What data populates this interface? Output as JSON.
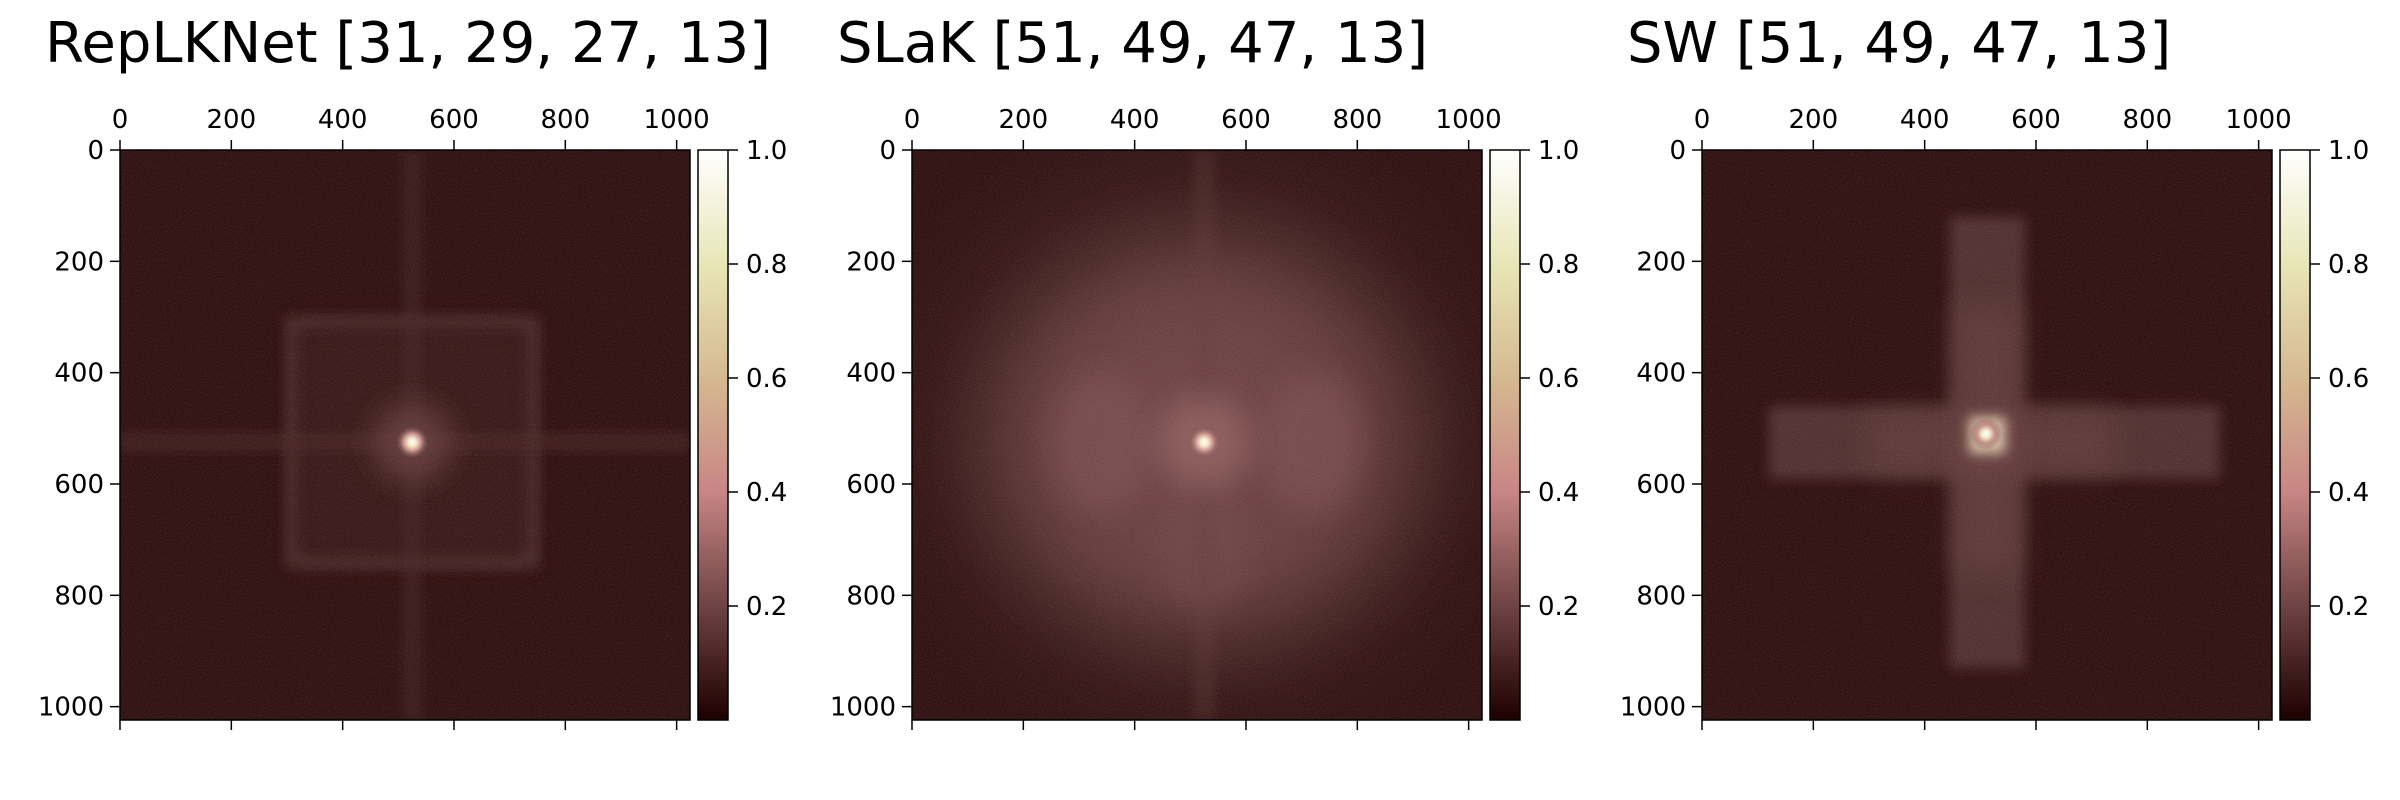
{
  "chart_data": [
    {
      "type": "heatmap",
      "title": "RepLKNet [31, 29, 27, 13]",
      "pattern": "square-ring",
      "x_ticks": [
        0,
        200,
        400,
        600,
        800,
        1000
      ],
      "y_ticks": [
        0,
        200,
        400,
        600,
        800,
        1000
      ],
      "xlim": [
        0,
        1024
      ],
      "ylim": [
        1024,
        0
      ],
      "x_axis_position": "top",
      "colorbar": {
        "ticks": [
          0.2,
          0.4,
          0.6,
          0.8,
          1.0
        ],
        "range": [
          0,
          1
        ],
        "colormap": "pink"
      },
      "peak": {
        "x": 525,
        "y": 525,
        "value": 1.0
      }
    },
    {
      "type": "heatmap",
      "title": "SLaK [51, 49, 47, 13]",
      "pattern": "diffuse",
      "x_ticks": [
        0,
        200,
        400,
        600,
        800,
        1000
      ],
      "y_ticks": [
        0,
        200,
        400,
        600,
        800,
        1000
      ],
      "xlim": [
        0,
        1024
      ],
      "ylim": [
        1024,
        0
      ],
      "x_axis_position": "top",
      "colorbar": {
        "ticks": [
          0.2,
          0.4,
          0.6,
          0.8,
          1.0
        ],
        "range": [
          0,
          1
        ],
        "colormap": "pink"
      },
      "peak": {
        "x": 525,
        "y": 525,
        "value": 1.0
      }
    },
    {
      "type": "heatmap",
      "title": "SW [51, 49, 47, 13]",
      "pattern": "cross",
      "x_ticks": [
        0,
        200,
        400,
        600,
        800,
        1000
      ],
      "y_ticks": [
        0,
        200,
        400,
        600,
        800,
        1000
      ],
      "xlim": [
        0,
        1024
      ],
      "ylim": [
        1024,
        0
      ],
      "x_axis_position": "top",
      "colorbar": {
        "ticks": [
          0.2,
          0.4,
          0.6,
          0.8,
          1.0
        ],
        "range": [
          0,
          1
        ],
        "colormap": "pink"
      },
      "peak": {
        "x": 510,
        "y": 510,
        "value": 1.0
      }
    }
  ]
}
